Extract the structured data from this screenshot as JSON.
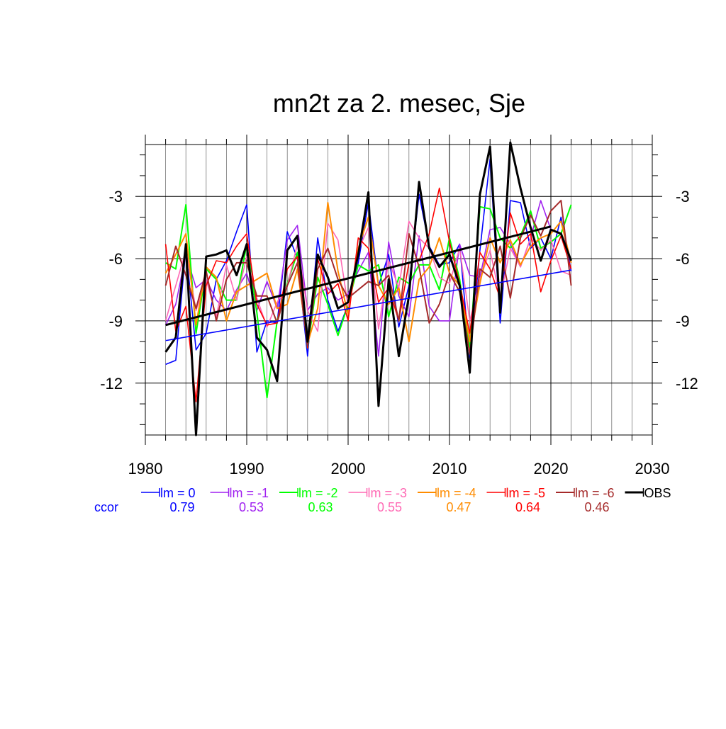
{
  "chart_data": {
    "type": "line",
    "title": "mn2t za 2. mesec, Sje",
    "xlabel": "",
    "ylabel": "",
    "xlim": [
      1980,
      2030
    ],
    "ylim": [
      -14.5,
      -0.5
    ],
    "x_ticks": [
      1980,
      1990,
      2000,
      2010,
      2020,
      2030
    ],
    "x_tick_labels": [
      "1980",
      "1990",
      "2000",
      "2010",
      "2020",
      "2030"
    ],
    "y_ticks": [
      -3,
      -6,
      -9,
      -12
    ],
    "y_tick_labels": [
      "-3",
      "-6",
      "-9",
      "-12"
    ],
    "grid": true,
    "x": [
      1982,
      1983,
      1984,
      1985,
      1986,
      1987,
      1988,
      1989,
      1990,
      1991,
      1992,
      1993,
      1994,
      1995,
      1996,
      1997,
      1998,
      1999,
      2000,
      2001,
      2002,
      2003,
      2004,
      2005,
      2006,
      2007,
      2008,
      2009,
      2010,
      2011,
      2012,
      2013,
      2014,
      2015,
      2016,
      2017,
      2018,
      2019,
      2020,
      2021,
      2022
    ],
    "series": [
      {
        "name": "lm = 0",
        "color": "#0000ff",
        "width": 1.6,
        "ccor": "0.79",
        "values": [
          -11.1,
          -10.9,
          -5.5,
          -10.4,
          -9.6,
          -7.0,
          -6.1,
          -4.7,
          -3.4,
          -10.5,
          -9.0,
          -9.1,
          -4.7,
          -6.0,
          -10.7,
          -5.0,
          -8.0,
          -9.5,
          -8.2,
          -6.2,
          -3.3,
          -7.3,
          -5.8,
          -9.3,
          -7.3,
          -2.9,
          -5.4,
          -6.3,
          -6.2,
          -5.3,
          -10.8,
          -5.6,
          -1.2,
          -9.1,
          -3.2,
          -3.3,
          -5.5,
          -5.0,
          -6.0,
          -4.0,
          -6.6
        ]
      },
      {
        "name": "lm = -1",
        "color": "#a020f0",
        "width": 1.6,
        "ccor": "0.53",
        "values": [
          -9.2,
          -8.2,
          -5.8,
          -7.4,
          -7.0,
          -8.0,
          -8.5,
          -7.5,
          -6.7,
          -8.5,
          -7.1,
          -8.4,
          -5.1,
          -4.4,
          -8.5,
          -7.7,
          -7.4,
          -8.0,
          -7.7,
          -6.6,
          -5.7,
          -10.7,
          -5.2,
          -7.8,
          -8.8,
          -4.9,
          -8.3,
          -9.0,
          -9.0,
          -5.3,
          -6.8,
          -6.9,
          -4.6,
          -4.5,
          -5.3,
          -6.4,
          -5.0,
          -3.2,
          -4.6,
          -4.8,
          -6.2
        ]
      },
      {
        "name": "lm = -2",
        "color": "#00ff00",
        "width": 2.0,
        "ccor": "0.63",
        "values": [
          -6.2,
          -6.5,
          -3.4,
          -9.6,
          -6.5,
          -7.0,
          -8.0,
          -8.0,
          -5.3,
          -8.6,
          -12.7,
          -9.0,
          -7.2,
          -5.7,
          -10.3,
          -6.9,
          -8.2,
          -9.7,
          -8.2,
          -6.3,
          -6.6,
          -6.3,
          -8.8,
          -6.9,
          -7.2,
          -6.3,
          -6.3,
          -7.5,
          -5.0,
          -7.0,
          -10.4,
          -3.5,
          -3.6,
          -5.0,
          -5.5,
          -4.9,
          -3.7,
          -5.5,
          -5.2,
          -4.8,
          -3.4
        ]
      },
      {
        "name": "lm = -3",
        "color": "#ff69b4",
        "width": 1.6,
        "ccor": "0.55",
        "values": [
          -9.0,
          -7.3,
          -5.6,
          -8.5,
          -7.0,
          -8.8,
          -6.3,
          -8.0,
          -5.9,
          -7.9,
          -9.3,
          -8.1,
          -7.3,
          -5.3,
          -8.5,
          -9.5,
          -4.3,
          -5.1,
          -8.3,
          -5.6,
          -4.5,
          -9.4,
          -6.1,
          -7.4,
          -4.2,
          -5.0,
          -5.5,
          -6.9,
          -7.2,
          -5.5,
          -9.0,
          -7.0,
          -5.6,
          -7.9,
          -5.5,
          -6.4,
          -5.0,
          -5.6,
          -5.1,
          -6.6,
          -6.8
        ]
      },
      {
        "name": "lm = -4",
        "color": "#ff8c00",
        "width": 2.0,
        "ccor": "0.47",
        "values": [
          -6.7,
          -5.8,
          -4.8,
          -9.2,
          -6.4,
          -6.9,
          -9.0,
          -7.6,
          -7.3,
          -7.0,
          -6.7,
          -8.4,
          -8.2,
          -6.5,
          -10.1,
          -8.4,
          -3.3,
          -6.6,
          -8.7,
          -5.5,
          -4.0,
          -7.3,
          -8.2,
          -7.4,
          -10.0,
          -7.0,
          -6.4,
          -5.0,
          -6.7,
          -7.3,
          -10.0,
          -7.2,
          -5.0,
          -6.2,
          -5.1,
          -6.3,
          -5.4,
          -5.0,
          -4.8,
          -4.2,
          -6.2
        ]
      },
      {
        "name": "lm = -5",
        "color": "#ff0000",
        "width": 1.6,
        "ccor": "0.64",
        "values": [
          -5.3,
          -9.5,
          -8.3,
          -12.9,
          -7.3,
          -6.1,
          -6.2,
          -5.4,
          -4.8,
          -8.2,
          -9.2,
          -9.1,
          -6.5,
          -5.9,
          -10.3,
          -6.0,
          -7.7,
          -7.2,
          -9.0,
          -5.0,
          -5.5,
          -8.1,
          -7.4,
          -9.0,
          -6.2,
          -6.1,
          -4.8,
          -2.6,
          -5.2,
          -7.2,
          -9.6,
          -5.7,
          -6.5,
          -7.9,
          -3.8,
          -5.3,
          -4.8,
          -7.6,
          -6.1,
          -4.9,
          -6.5
        ]
      },
      {
        "name": "lm = -6",
        "color": "#a52a2a",
        "width": 2.0,
        "ccor": "0.46",
        "values": [
          -7.3,
          -5.4,
          -6.8,
          -8.4,
          -6.6,
          -9.0,
          -7.0,
          -6.2,
          -6.2,
          -7.8,
          -7.8,
          -9.1,
          -7.3,
          -6.2,
          -10.2,
          -6.5,
          -5.5,
          -7.0,
          -7.9,
          -7.5,
          -7.1,
          -7.3,
          -6.8,
          -9.0,
          -4.8,
          -6.4,
          -9.1,
          -8.2,
          -6.7,
          -7.6,
          -10.6,
          -6.5,
          -6.9,
          -5.4,
          -7.9,
          -5.0,
          -3.9,
          -4.9,
          -3.7,
          -3.2,
          -7.3
        ]
      },
      {
        "name": "OBS",
        "color": "#000000",
        "width": 3.0,
        "ccor": "",
        "values": [
          -10.5,
          -9.8,
          -5.3,
          -14.5,
          -5.9,
          -5.8,
          -5.6,
          -6.8,
          -5.3,
          -9.8,
          -10.4,
          -11.9,
          -5.6,
          -4.9,
          -10.0,
          -5.8,
          -6.9,
          -8.4,
          -8.1,
          -5.8,
          -2.8,
          -13.1,
          -7.0,
          -10.7,
          -7.8,
          -2.3,
          -5.5,
          -6.4,
          -5.8,
          -7.3,
          -11.5,
          -2.9,
          -0.6,
          -8.6,
          -0.4,
          -2.6,
          -4.5,
          -6.1,
          -4.6,
          -4.8,
          -6.1
        ]
      }
    ],
    "trend_lines": [
      {
        "name": "lm = 0 trend",
        "color": "#0000ff",
        "width": 1.6,
        "x": [
          1982,
          2022
        ],
        "values": [
          -9.95,
          -6.55
        ]
      },
      {
        "name": "OBS trend",
        "color": "#000000",
        "width": 3.0,
        "x": [
          1982,
          2020
        ],
        "values": [
          -9.2,
          -4.45
        ]
      }
    ],
    "legend": {
      "placement": "bottom",
      "ccor_label": "ccor",
      "ccor_label_color": "#0000ff"
    }
  }
}
